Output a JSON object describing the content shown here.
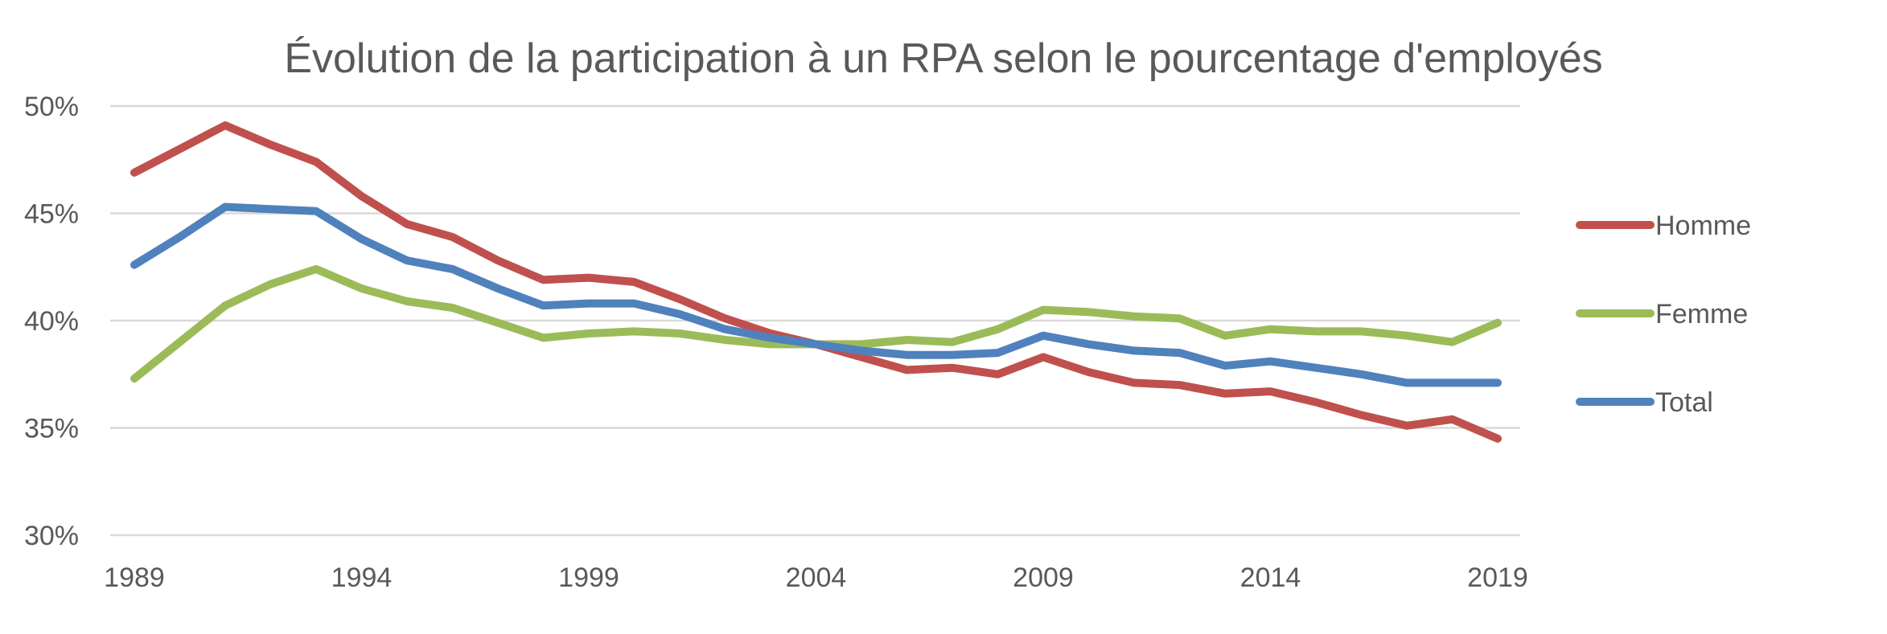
{
  "chart_data": {
    "type": "line",
    "title": "Évolution de la participation à un RPA selon le pourcentage d'employés",
    "xlabel": "",
    "ylabel": "",
    "x": [
      1989,
      1990,
      1991,
      1992,
      1993,
      1994,
      1995,
      1996,
      1997,
      1998,
      1999,
      2000,
      2001,
      2002,
      2003,
      2004,
      2005,
      2006,
      2007,
      2008,
      2009,
      2010,
      2011,
      2012,
      2013,
      2014,
      2015,
      2016,
      2017,
      2018,
      2019
    ],
    "xticks": [
      1989,
      1994,
      1999,
      2004,
      2009,
      2014,
      2019
    ],
    "xtick_labels": [
      "1989",
      "1994",
      "1999",
      "2004",
      "2009",
      "2014",
      "2019"
    ],
    "ylim": [
      30,
      50
    ],
    "yticks": [
      30,
      35,
      40,
      45,
      50
    ],
    "ytick_labels": [
      "30%",
      "35%",
      "40%",
      "45%",
      "50%"
    ],
    "grid": true,
    "legend_position": "right",
    "series": [
      {
        "name": "Homme",
        "color": "#c0504d",
        "values": [
          46.9,
          48.0,
          49.1,
          48.2,
          47.4,
          45.8,
          44.5,
          43.9,
          42.8,
          41.9,
          42.0,
          41.8,
          41.0,
          40.1,
          39.4,
          38.9,
          38.3,
          37.7,
          37.8,
          37.5,
          38.3,
          37.6,
          37.1,
          37.0,
          36.6,
          36.7,
          36.2,
          35.6,
          35.1,
          35.4,
          34.5
        ]
      },
      {
        "name": "Femme",
        "color": "#9bbb59",
        "values": [
          37.3,
          39.0,
          40.7,
          41.7,
          42.4,
          41.5,
          40.9,
          40.6,
          39.9,
          39.2,
          39.4,
          39.5,
          39.4,
          39.1,
          38.9,
          38.9,
          38.9,
          39.1,
          39.0,
          39.6,
          40.5,
          40.4,
          40.2,
          40.1,
          39.3,
          39.6,
          39.5,
          39.5,
          39.3,
          39.0,
          39.9
        ]
      },
      {
        "name": "Total",
        "color": "#4f81bd",
        "values": [
          42.6,
          43.9,
          45.3,
          45.2,
          45.1,
          43.8,
          42.8,
          42.4,
          41.5,
          40.7,
          40.8,
          40.8,
          40.3,
          39.6,
          39.2,
          38.9,
          38.6,
          38.4,
          38.4,
          38.5,
          39.3,
          38.9,
          38.6,
          38.5,
          37.9,
          38.1,
          37.8,
          37.5,
          37.1,
          37.1,
          37.1
        ]
      }
    ]
  }
}
